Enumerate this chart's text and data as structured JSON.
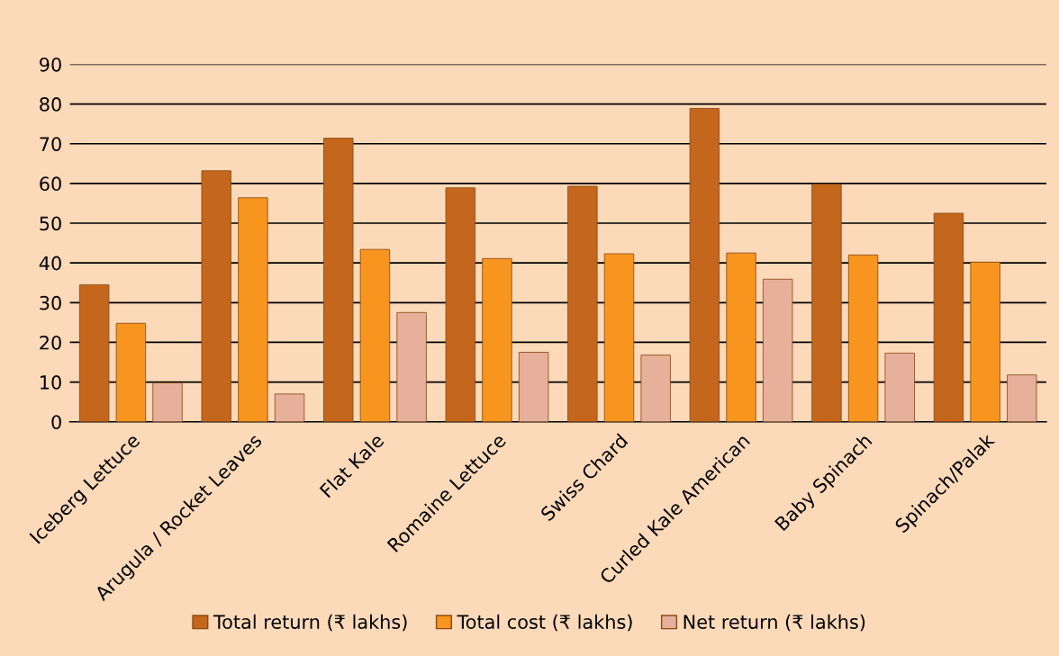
{
  "chart_data": {
    "type": "bar",
    "categories": [
      "Iceberg Lettuce",
      "Arugula / Rocket Leaves",
      "Flat Kale",
      "Romaine Lettuce",
      "Swiss Chard",
      "Curled Kale American",
      "Baby Spinach",
      "Spinach/Palak"
    ],
    "series": [
      {
        "name": "Total return (₹ lakhs)",
        "color": "#c4661c",
        "values": [
          34.5,
          63.2,
          71.4,
          58.9,
          59.3,
          78.9,
          59.8,
          52.5
        ]
      },
      {
        "name": "Total cost (₹ lakhs)",
        "color": "#f7951f",
        "values": [
          24.8,
          56.4,
          43.4,
          41.1,
          42.3,
          42.5,
          42.0,
          40.2
        ]
      },
      {
        "name": "Net return (₹ lakhs)",
        "color": "#e6b09a",
        "values": [
          9.8,
          7.0,
          27.5,
          17.5,
          16.8,
          35.9,
          17.3,
          11.8
        ]
      }
    ],
    "ylim": [
      0,
      90
    ],
    "yticks": [
      0,
      10,
      20,
      30,
      40,
      50,
      60,
      70,
      80,
      90
    ],
    "grid": "y",
    "legend": "bottom"
  }
}
